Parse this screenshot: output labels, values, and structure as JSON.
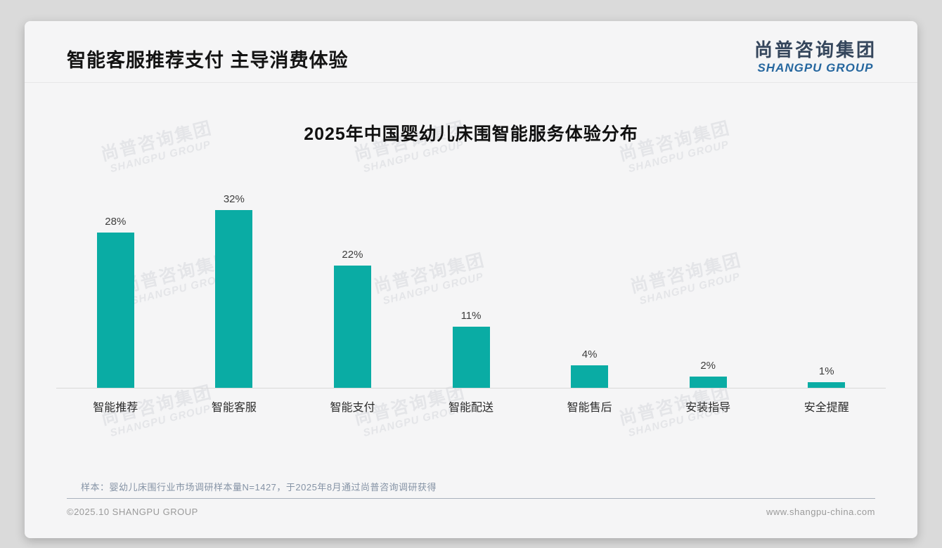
{
  "page": {
    "title": "智能客服推荐支付 主导消费体验",
    "sample_note": "样本：婴幼儿床围行业市场调研样本量N=1427，于2025年8月通过尚普咨询调研获得",
    "footer_left": "©2025.10 SHANGPU GROUP",
    "footer_right": "www.shangpu-china.com"
  },
  "logo": {
    "cn": "尚普咨询集团",
    "en": "SHANGPU GROUP"
  },
  "watermark": {
    "line1": "尚普咨询集团",
    "line2": "SHANGPU GROUP"
  },
  "chart_data": {
    "type": "bar",
    "title": "2025年中国婴幼儿床围智能服务体验分布",
    "categories": [
      "智能推荐",
      "智能客服",
      "智能支付",
      "智能配送",
      "智能售后",
      "安装指导",
      "安全提醒"
    ],
    "values": [
      28,
      32,
      22,
      11,
      4,
      2,
      1
    ],
    "value_labels": [
      "28%",
      "32%",
      "22%",
      "11%",
      "4%",
      "2%",
      "1%"
    ],
    "unit": "%",
    "bar_color": "#0aaca4",
    "ylim": [
      0,
      34
    ],
    "grid": false,
    "legend": "none",
    "xlabel": "",
    "ylabel": ""
  }
}
